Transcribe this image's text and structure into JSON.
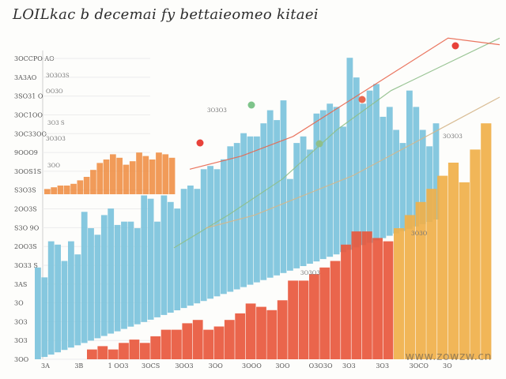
{
  "chart_data": {
    "type": "bar",
    "title": "LOILkac b decemai fy bettaieomeo kitaei",
    "xlabel": "",
    "ylabel": "",
    "ylim": [
      0,
      100
    ],
    "y_tick_labels": [
      "3OCCPO AO",
      "3A3AO",
      "3SO31 O",
      "3OC1OO",
      "3OC33OO",
      "9OOO9",
      "3OOS1S",
      "S3O3S",
      "2OO3S",
      "S3O 9O",
      "2OO3S",
      "3O33 S",
      "3AS",
      "3O",
      "3O3",
      "3O3",
      "3OO"
    ],
    "x_tick_labels": [
      "3A",
      "3B",
      "1 OO3",
      "3OCS",
      "3OO3",
      "3OO",
      "3OOO",
      "3OO",
      "O3O3O",
      "3O3",
      "3O3",
      "3OCO",
      "3O"
    ],
    "series": [
      {
        "name": "blue",
        "color": "#7cc3dc",
        "values": [
          28,
          25,
          36,
          35,
          30,
          36,
          32,
          45,
          40,
          38,
          44,
          46,
          41,
          42,
          42,
          40,
          50,
          49,
          42,
          50,
          48,
          46,
          52,
          53,
          52,
          58,
          59,
          58,
          61,
          65,
          66,
          69,
          68,
          68,
          72,
          76,
          73,
          79,
          55,
          66,
          68,
          64,
          75,
          76,
          78,
          77,
          71,
          92,
          86,
          78,
          82,
          84,
          74,
          77,
          70,
          66,
          82,
          77,
          70,
          65,
          72
        ]
      },
      {
        "name": "upper-orange",
        "color": "#ee8a3c",
        "values": [
          3,
          4,
          5,
          5,
          6,
          8,
          10,
          14,
          18,
          20,
          23,
          21,
          17,
          19,
          24,
          22,
          20,
          24,
          23,
          21
        ]
      },
      {
        "name": "lower-red-orange",
        "color": "#e8583d",
        "values": [
          3,
          4,
          3,
          5,
          6,
          5,
          7,
          9,
          9,
          11,
          12,
          9,
          10,
          12,
          14,
          17,
          16,
          15,
          18,
          24,
          24,
          26,
          28,
          30,
          35,
          39,
          39,
          37,
          36
        ]
      },
      {
        "name": "right-amber",
        "color": "#f0b04a",
        "values": [
          40,
          44,
          48,
          52,
          56,
          60,
          54,
          64,
          72
        ]
      }
    ],
    "lines": [
      {
        "name": "green",
        "color": "#8fbf8a",
        "values": [
          34,
          44,
          55,
          70,
          82,
          90,
          98
        ]
      },
      {
        "name": "red-trend",
        "color": "#e8674f",
        "values": [
          58,
          62,
          68,
          78,
          88,
          98,
          96
        ]
      },
      {
        "name": "tan",
        "color": "#d5b68a",
        "values": [
          40,
          44,
          50,
          56,
          64,
          72,
          80
        ]
      }
    ],
    "annotations": [
      "3O3O3S",
      "OO3O",
      "3O3 S",
      "3O3O3",
      "3OO",
      "3O3O3",
      "3O3O3",
      "3O3O",
      "3O3O3"
    ]
  },
  "watermark": "www.zowzw.cn",
  "colors": {
    "blue": "#7cc3dc",
    "orange": "#ee8a3c",
    "red": "#e8583d",
    "amber": "#f0b04a",
    "axis": "#cfcfcf"
  }
}
